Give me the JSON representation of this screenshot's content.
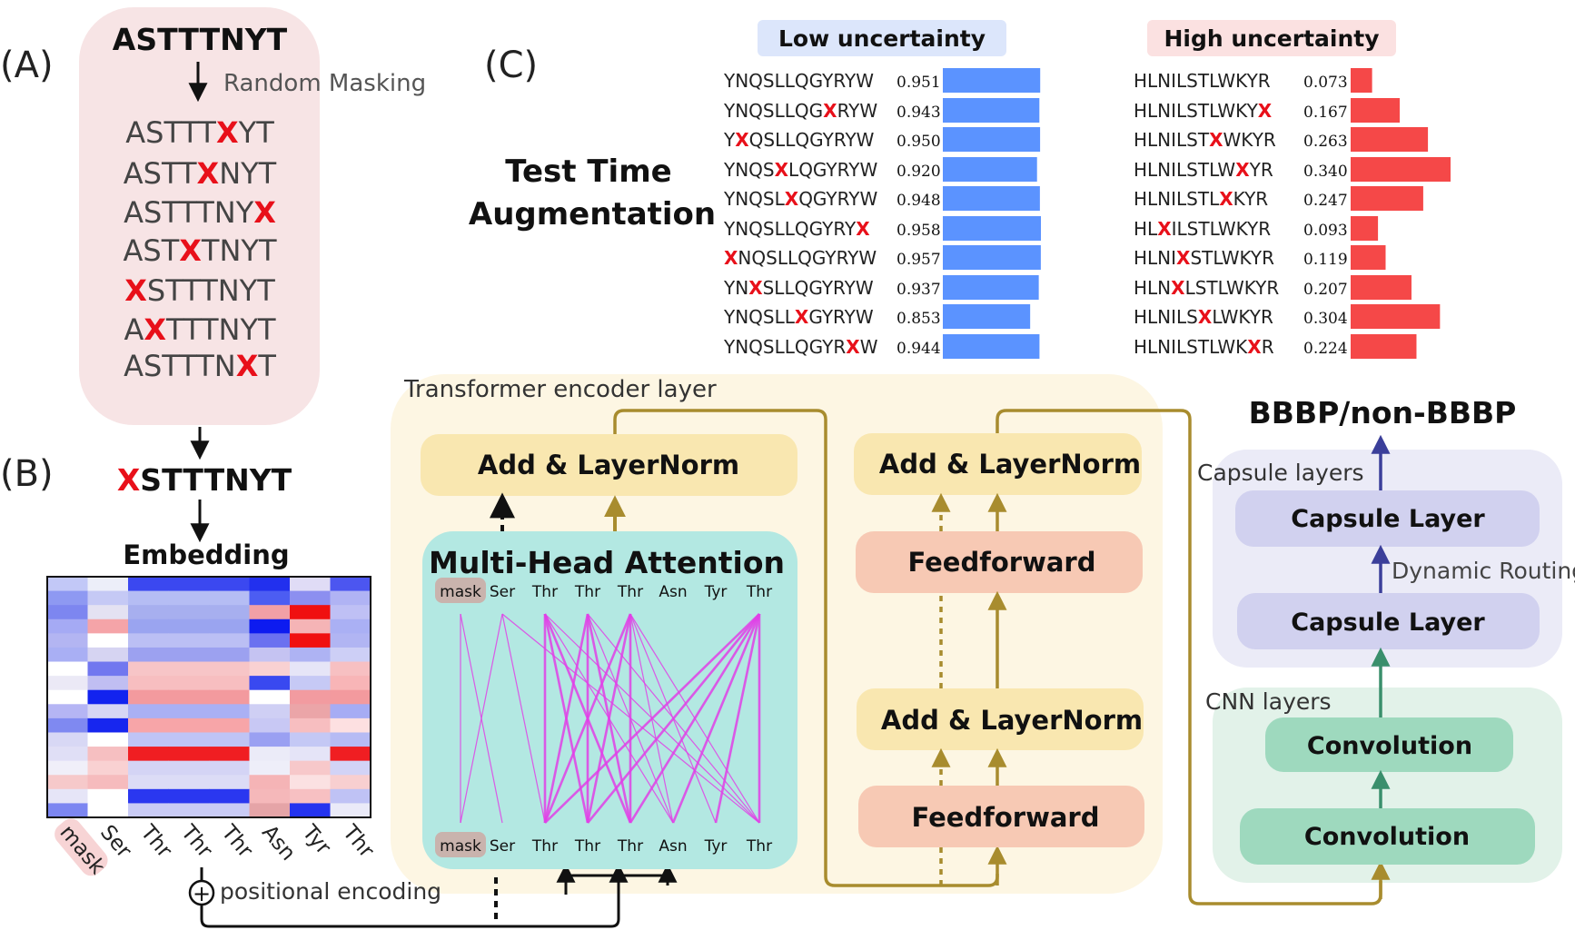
{
  "panel_labels": {
    "a": "(A)",
    "b": "(B)",
    "c": "(C)"
  },
  "panel_a": {
    "original": "ASTTTNYT",
    "masking_label": "Random Masking",
    "masked_variants": [
      {
        "pre": "ASTTT",
        "x": "X",
        "post": "YT"
      },
      {
        "pre": "ASTT",
        "x": "X",
        "post": "NYT"
      },
      {
        "pre": "ASTTTNY",
        "x": "X",
        "post": ""
      },
      {
        "pre": "AST",
        "x": "X",
        "post": "TNYT"
      },
      {
        "pre": "",
        "x": "X",
        "post": "STTTNYT"
      },
      {
        "pre": "A",
        "x": "X",
        "post": "TTTNYT"
      },
      {
        "pre": "ASTTTN",
        "x": "X",
        "post": "T"
      }
    ]
  },
  "panel_b": {
    "selected": {
      "x": "X",
      "post": "STTTNYT"
    },
    "embedding_label": "Embedding",
    "tokens": [
      "mask",
      "Ser",
      "Thr",
      "Thr",
      "Thr",
      "Asn",
      "Tyr",
      "Thr"
    ],
    "positional_label": "positional encoding",
    "plus_symbol": "+"
  },
  "panel_c": {
    "tta_title_line1": "Test Time",
    "tta_title_line2": "Augmentation",
    "low": {
      "label": "Low uncertainty",
      "color": "#5b93ff",
      "label_bg": "#dce6fb",
      "rows": [
        {
          "pre": "YNQSLLQGYRYW",
          "x": "",
          "post": "",
          "value": "0.951"
        },
        {
          "pre": "YNQSLLQG",
          "x": "X",
          "post": "RYW",
          "value": "0.943"
        },
        {
          "pre": "Y",
          "x": "X",
          "post": "QSLLQGYRYW",
          "value": "0.950"
        },
        {
          "pre": "YNQS",
          "x": "X",
          "post": "LQGYRYW",
          "value": "0.920"
        },
        {
          "pre": "YNQSL",
          "x": "X",
          "post": "QGYRYW",
          "value": "0.948"
        },
        {
          "pre": "YNQSLLQGYRY",
          "x": "X",
          "post": "",
          "value": "0.958"
        },
        {
          "pre": "",
          "x": "X",
          "post": "NQSLLQGYRYW",
          "value": "0.957"
        },
        {
          "pre": "YN",
          "x": "X",
          "post": "SLLQGYRYW",
          "value": "0.937"
        },
        {
          "pre": "YNQSLL",
          "x": "X",
          "post": "GYRYW",
          "value": "0.853"
        },
        {
          "pre": "YNQSLLQGYR",
          "x": "X",
          "post": "W",
          "value": "0.944"
        }
      ]
    },
    "high": {
      "label": "High uncertainty",
      "color": "#f54848",
      "label_bg": "#fbe1e1",
      "rows": [
        {
          "pre": "HLNILSTLWKYR",
          "x": "",
          "post": "",
          "value": "0.073"
        },
        {
          "pre": "HLNILSTLWKY",
          "x": "X",
          "post": "",
          "value": "0.167"
        },
        {
          "pre": "HLNILST",
          "x": "X",
          "post": "WKYR",
          "value": "0.263"
        },
        {
          "pre": "HLNILSTLW",
          "x": "X",
          "post": "YR",
          "value": "0.340"
        },
        {
          "pre": "HLNILSTL",
          "x": "X",
          "post": "KYR",
          "value": "0.247"
        },
        {
          "pre": "HL",
          "x": "X",
          "post": "ILSTLWKYR",
          "value": "0.093"
        },
        {
          "pre": "HLNI",
          "x": "X",
          "post": "STLWKYR",
          "value": "0.119"
        },
        {
          "pre": "HLN",
          "x": "X",
          "post": "LSTLWKYR",
          "value": "0.207"
        },
        {
          "pre": "HLNILS",
          "x": "X",
          "post": "LWKYR",
          "value": "0.304"
        },
        {
          "pre": "HLNILSTLWK",
          "x": "X",
          "post": "R",
          "value": "0.224"
        }
      ]
    }
  },
  "transformer": {
    "title": "Transformer encoder layer",
    "mha_title": "Multi-Head Attention",
    "tokens": [
      "mask",
      "Ser",
      "Thr",
      "Thr",
      "Thr",
      "Asn",
      "Tyr",
      "Thr"
    ],
    "add_norm": "Add & LayerNorm",
    "feedforward": "Feedforward"
  },
  "classifier": {
    "output": "BBBP/non-BBBP",
    "capsule_group": "Capsule layers",
    "capsule_layer": "Capsule Layer",
    "routing": "Dynamic Routing",
    "cnn_group": "CNN layers",
    "convolution": "Convolution"
  },
  "colors": {
    "masked_red": "#e8101a",
    "gold_arrow": "#a88c2e",
    "magenta_lines": "#e040e6",
    "navy_arrow": "#3b3f9a",
    "green_arrow": "#3a8f6c"
  },
  "heatmap_colors": [
    [
      "#c2c8f7",
      "#eceef9",
      "#3b48f0",
      "#3b48f0",
      "#3b48f0",
      "#2230ee",
      "#e0dcf6",
      "#4c56f0"
    ],
    [
      "#8e99f2",
      "#c5c9f5",
      "#b5bdf4",
      "#b5bdf4",
      "#b5bdf4",
      "#4c5df2",
      "#8c8ff0",
      "#b0b3f4"
    ],
    [
      "#7d86f0",
      "#e4e2f2",
      "#a7afef",
      "#a7afef",
      "#a7afef",
      "#f2a0a6",
      "#f01010",
      "#bfc0f5"
    ],
    [
      "#a5aaf4",
      "#f5a4a8",
      "#9aa4f0",
      "#9aa4f0",
      "#9aa4f0",
      "#0d1bf0",
      "#f5b4b6",
      "#aab0f4"
    ],
    [
      "#b3b5f2",
      "#ffffff",
      "#bbbff4",
      "#bbbff4",
      "#bbbff4",
      "#6b71f0",
      "#f01010",
      "#b1b5f3"
    ],
    [
      "#a9aff4",
      "#d6d4f2",
      "#9ca1f0",
      "#9ca1f0",
      "#9ca1f0",
      "#c5c3f2",
      "#aeb3f3",
      "#cdcff6"
    ],
    [
      "#ffffff",
      "#7177ef",
      "#f7c5c7",
      "#f7c5c7",
      "#f7c5c7",
      "#f9d1d2",
      "#e6e5f7",
      "#f7c0c2"
    ],
    [
      "#ebe9f6",
      "#c0bef2",
      "#f7bec0",
      "#f7bec0",
      "#f7bec0",
      "#3949f0",
      "#c6c9f5",
      "#f8b5b7"
    ],
    [
      "#ffffff",
      "#1223ef",
      "#f39a9e",
      "#f39a9e",
      "#f39a9e",
      "#ffffff",
      "#f29ba0",
      "#f39a9e"
    ],
    [
      "#b5b5f4",
      "#d7d6f4",
      "#aab0f4",
      "#aab0f4",
      "#aab0f4",
      "#cfcff4",
      "#eba5a8",
      "#a6acf4"
    ],
    [
      "#7f89f1",
      "#1726ef",
      "#f7a5a8",
      "#f7a5a8",
      "#f7a5a8",
      "#c8c8f4",
      "#f7bec0",
      "#fde0e1"
    ],
    [
      "#d8d8f5",
      "#ffffff",
      "#bfc4f5",
      "#bfc4f5",
      "#bfc4f5",
      "#9aa0f2",
      "#c4c8f5",
      "#b6bbf4"
    ],
    [
      "#e0dff6",
      "#f6bfc1",
      "#f01e22",
      "#f01e22",
      "#f01e22",
      "#ebebf8",
      "#e5e4f7",
      "#f01e22"
    ],
    [
      "#f0eff9",
      "#f9d1d2",
      "#d4d4f5",
      "#d4d4f5",
      "#d4d4f5",
      "#eeeef9",
      "#f7c8ca",
      "#d2d3f6"
    ],
    [
      "#f6c9ca",
      "#f6bbbd",
      "#dcdcf6",
      "#dcdcf6",
      "#dcdcf6",
      "#f5b4b6",
      "#fbe1e2",
      "#f8cfd0"
    ],
    [
      "#e6e5f7",
      "#ffffff",
      "#2a37f0",
      "#2a37f0",
      "#2a37f0",
      "#f5b8ba",
      "#f7c0c2",
      "#bfc2f5"
    ],
    [
      "#7c86f1",
      "#ffffff",
      "#c9cbf5",
      "#c9cbf5",
      "#c9cbf5",
      "#e5a4a7",
      "#2433ef",
      "#eaeaf8"
    ]
  ],
  "attention_edges": [
    [
      0,
      0
    ],
    [
      0,
      1
    ],
    [
      1,
      0
    ],
    [
      1,
      2
    ],
    [
      1,
      7
    ],
    [
      2,
      2
    ],
    [
      2,
      3
    ],
    [
      2,
      4
    ],
    [
      2,
      5
    ],
    [
      2,
      7
    ],
    [
      3,
      2
    ],
    [
      3,
      3
    ],
    [
      3,
      4
    ],
    [
      3,
      5
    ],
    [
      3,
      7
    ],
    [
      4,
      2
    ],
    [
      4,
      3
    ],
    [
      4,
      4
    ],
    [
      4,
      5
    ],
    [
      4,
      6
    ],
    [
      4,
      7
    ],
    [
      7,
      2
    ],
    [
      7,
      3
    ],
    [
      7,
      4
    ],
    [
      7,
      5
    ],
    [
      7,
      6
    ],
    [
      7,
      7
    ]
  ]
}
